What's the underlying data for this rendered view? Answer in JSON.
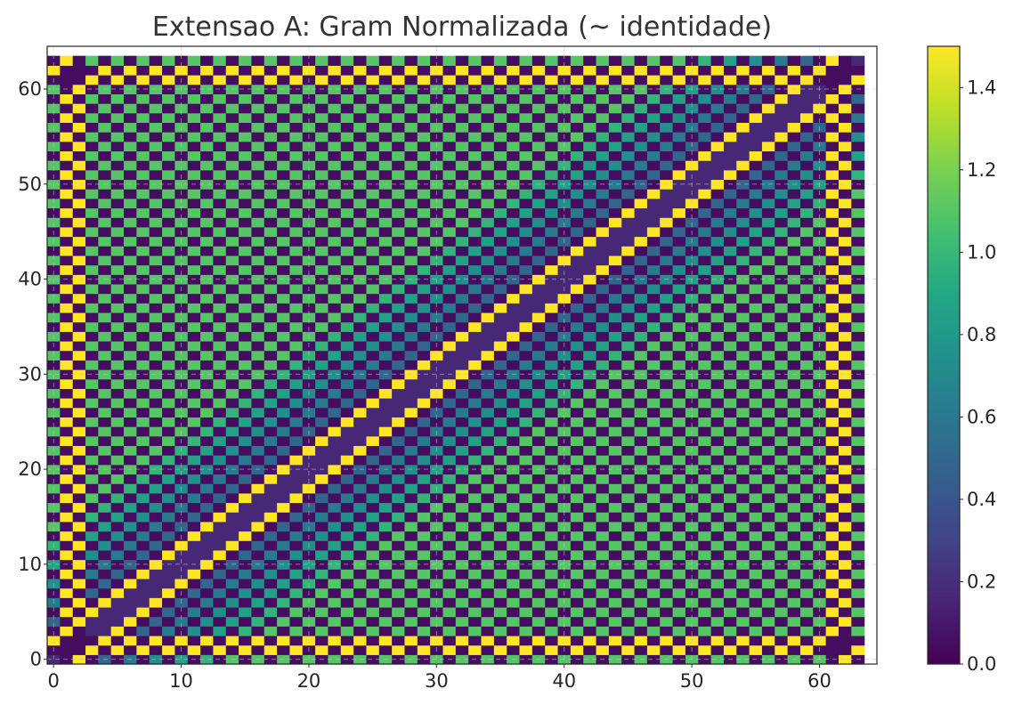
{
  "chart_data": {
    "type": "heatmap",
    "title": "Extensao A: Gram Normalizada (~ identidade)",
    "xlabel": "",
    "ylabel": "",
    "matrix_size": 64,
    "xlim": [
      -0.5,
      64.5
    ],
    "ylim": [
      -0.5,
      64.5
    ],
    "origin": "lower",
    "x_ticks": [
      0,
      10,
      20,
      30,
      40,
      50,
      60
    ],
    "y_ticks": [
      0,
      10,
      20,
      30,
      40,
      50,
      60
    ],
    "grid": true,
    "colormap": "viridis",
    "colorbar": {
      "vmin": 0.0,
      "vmax": 1.5,
      "ticks": [
        "0.0",
        "0.2",
        "0.4",
        "0.6",
        "0.8",
        "1.0",
        "1.2",
        "1.4"
      ]
    },
    "pattern": {
      "description_values": "checkerboard of alternating high/low similarity; two bright diagonal bands at |i-j| = 2; bright border rows/columns at indices 1-2 and 61-62",
      "diagonal_offset": 2,
      "high_value": 1.5,
      "low_value": 0.05,
      "checker_mid_value": 1.0,
      "border_indices": [
        1,
        2,
        61,
        62
      ]
    }
  }
}
